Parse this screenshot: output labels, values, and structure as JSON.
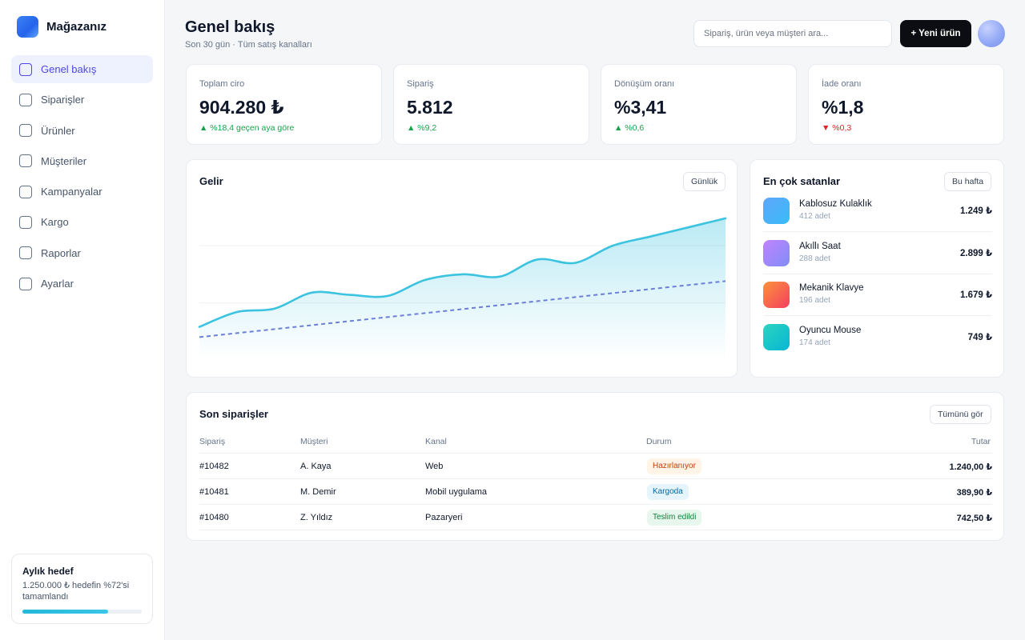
{
  "brand": {
    "name": "Mağazanız"
  },
  "sidebar": {
    "items": [
      {
        "label": "Genel bakış",
        "active": true
      },
      {
        "label": "Siparişler",
        "active": false
      },
      {
        "label": "Ürünler",
        "active": false
      },
      {
        "label": "Müşteriler",
        "active": false
      },
      {
        "label": "Kampanyalar",
        "active": false
      },
      {
        "label": "Kargo",
        "active": false
      },
      {
        "label": "Raporlar",
        "active": false
      },
      {
        "label": "Ayarlar",
        "active": false
      }
    ],
    "goal": {
      "title": "Aylık hedef",
      "text": "1.250.000 ₺ hedefin %72'si tamamlandı",
      "progress": 0.72
    }
  },
  "header": {
    "title": "Genel bakış",
    "subtitle": "Son 30 gün · Tüm satış kanalları",
    "search_placeholder": "Sipariş, ürün veya müşteri ara...",
    "new_button": "+ Yeni ürün"
  },
  "kpis": [
    {
      "label": "Toplam ciro",
      "value": "904.280 ₺",
      "delta": "▲ %18,4 geçen aya göre",
      "trend": "up"
    },
    {
      "label": "Sipariş",
      "value": "5.812",
      "delta": "▲ %9,2",
      "trend": "up"
    },
    {
      "label": "Dönüşüm oranı",
      "value": "%3,41",
      "delta": "▲ %0,6",
      "trend": "up"
    },
    {
      "label": "İade oranı",
      "value": "%1,8",
      "delta": "▼ %0,3",
      "trend": "down"
    }
  ],
  "revenue": {
    "title": "Gelir",
    "period_button": "Günlük",
    "colors": {
      "line": "#3bc3e0",
      "target": "#6b7fd7"
    }
  },
  "chart_data": {
    "type": "area",
    "title": "Gelir",
    "grid": true,
    "series": [
      {
        "values": [
          0.29,
          0.42,
          0.45,
          0.59,
          0.57,
          0.56,
          0.7,
          0.75,
          0.73,
          0.88,
          0.85,
          1.0,
          1.08,
          1.16,
          1.24
        ]
      },
      {
        "style": "dashed",
        "values": [
          0.2,
          0.235,
          0.27,
          0.305,
          0.34,
          0.375,
          0.41,
          0.445,
          0.48,
          0.515,
          0.55,
          0.585,
          0.62,
          0.655,
          0.69
        ]
      }
    ]
  },
  "top_sellers": {
    "title": "En çok satanlar",
    "period_button": "Bu hafta",
    "items": [
      {
        "name": "Kablosuz Kulaklık",
        "qty": "412 adet",
        "price": "1.249 ₺",
        "color_a": "#60a5fa",
        "color_b": "#38bdf8"
      },
      {
        "name": "Akıllı Saat",
        "qty": "288 adet",
        "price": "2.899 ₺",
        "color_a": "#c084fc",
        "color_b": "#818cf8"
      },
      {
        "name": "Mekanik Klavye",
        "qty": "196 adet",
        "price": "1.679 ₺",
        "color_a": "#fb923c",
        "color_b": "#f43f5e"
      },
      {
        "name": "Oyuncu Mouse",
        "qty": "174 adet",
        "price": "749 ₺",
        "color_a": "#2dd4bf",
        "color_b": "#06b6d4"
      }
    ]
  },
  "orders": {
    "title": "Son siparişler",
    "view_all": "Tümünü gör",
    "columns": {
      "order": "Sipariş",
      "customer": "Müşteri",
      "channel": "Kanal",
      "status": "Durum",
      "amount": "Tutar"
    },
    "rows": [
      {
        "id": "#10482",
        "customer": "A. Kaya",
        "channel": "Web",
        "status": "Hazırlanıyor",
        "status_type": "orange",
        "amount": "1.240,00 ₺"
      },
      {
        "id": "#10481",
        "customer": "M. Demir",
        "channel": "Mobil uygulama",
        "status": "Kargoda",
        "status_type": "blue",
        "amount": "389,90 ₺"
      },
      {
        "id": "#10480",
        "customer": "Z. Yıldız",
        "channel": "Pazaryeri",
        "status": "Teslim edildi",
        "status_type": "green",
        "amount": "742,50 ₺"
      }
    ]
  }
}
